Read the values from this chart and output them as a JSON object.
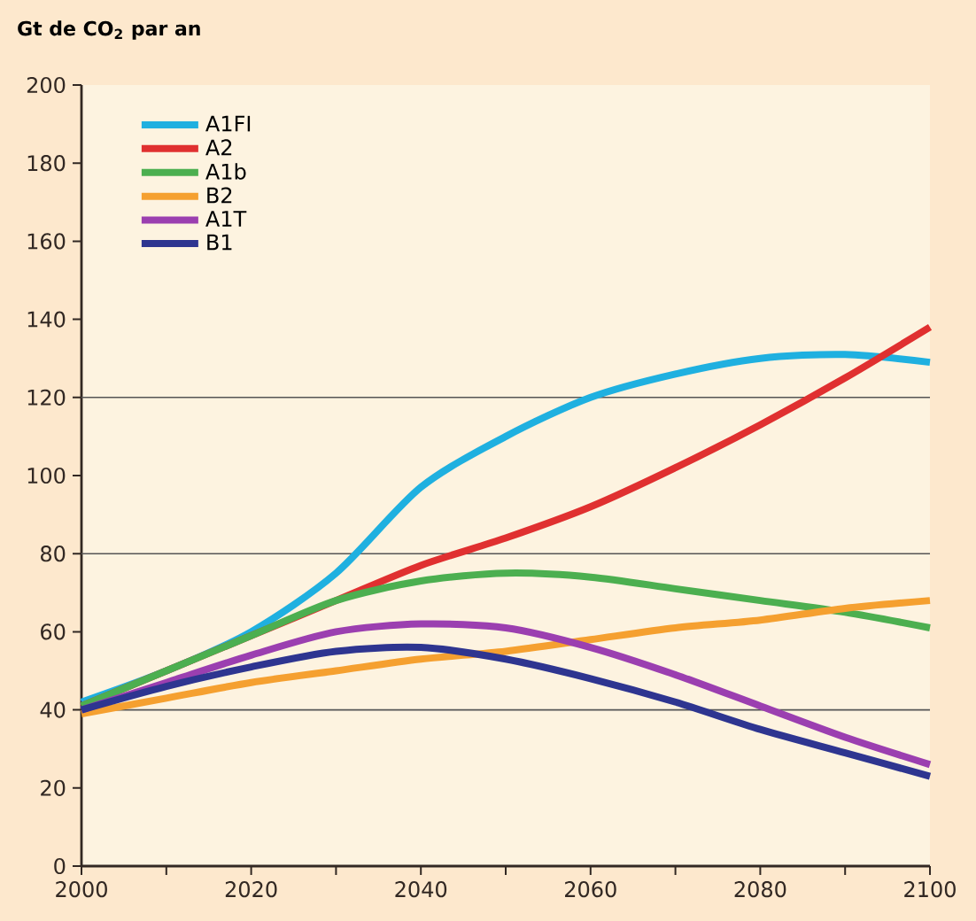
{
  "chart_data": {
    "type": "line",
    "ylabel": "Gt de CO$_{2}$ par an",
    "x": [
      2000,
      2010,
      2020,
      2030,
      2040,
      2050,
      2060,
      2070,
      2080,
      2090,
      2100
    ],
    "series": [
      {
        "name": "A1FI",
        "color": "#1fb0e0",
        "values": [
          42,
          50,
          60,
          75,
          97,
          110,
          120,
          126,
          130,
          131,
          129
        ]
      },
      {
        "name": "A2",
        "color": "#e03030",
        "values": [
          41,
          50,
          59,
          68,
          77,
          84,
          92,
          102,
          113,
          125,
          138
        ]
      },
      {
        "name": "A1b",
        "color": "#4caf50",
        "values": [
          41,
          50,
          59,
          68,
          73,
          75,
          74,
          71,
          68,
          65,
          61
        ]
      },
      {
        "name": "B2",
        "color": "#f5a030",
        "values": [
          39,
          43,
          47,
          50,
          53,
          55,
          58,
          61,
          63,
          66,
          68
        ]
      },
      {
        "name": "A1T",
        "color": "#9b3fb0",
        "values": [
          40,
          47,
          54,
          60,
          62,
          61,
          56,
          49,
          41,
          33,
          26
        ]
      },
      {
        "name": "B1",
        "color": "#2e3590",
        "values": [
          40,
          46,
          51,
          55,
          56,
          53,
          48,
          42,
          35,
          29,
          23
        ]
      }
    ],
    "xlim": [
      2000,
      2100
    ],
    "ylim": [
      0,
      200
    ],
    "xticks": [
      2000,
      {
        "value": 2010,
        "label": null
      },
      2020,
      {
        "value": 2030,
        "label": null
      },
      2040,
      {
        "value": 2050,
        "label": null
      },
      2060,
      {
        "value": 2070,
        "label": null
      },
      2080,
      {
        "value": 2090,
        "label": null
      },
      2100
    ],
    "yticks": [
      0,
      20,
      40,
      60,
      80,
      100,
      120,
      140,
      160,
      180,
      200
    ],
    "ref_lines": [
      {
        "axis": "y",
        "value": 40,
        "color": "#555555"
      },
      {
        "axis": "y",
        "value": 80,
        "color": "#555555"
      },
      {
        "axis": "y",
        "value": 120,
        "color": "#555555"
      }
    ],
    "legend": "top left",
    "line_style": "solid",
    "marker": "none"
  }
}
